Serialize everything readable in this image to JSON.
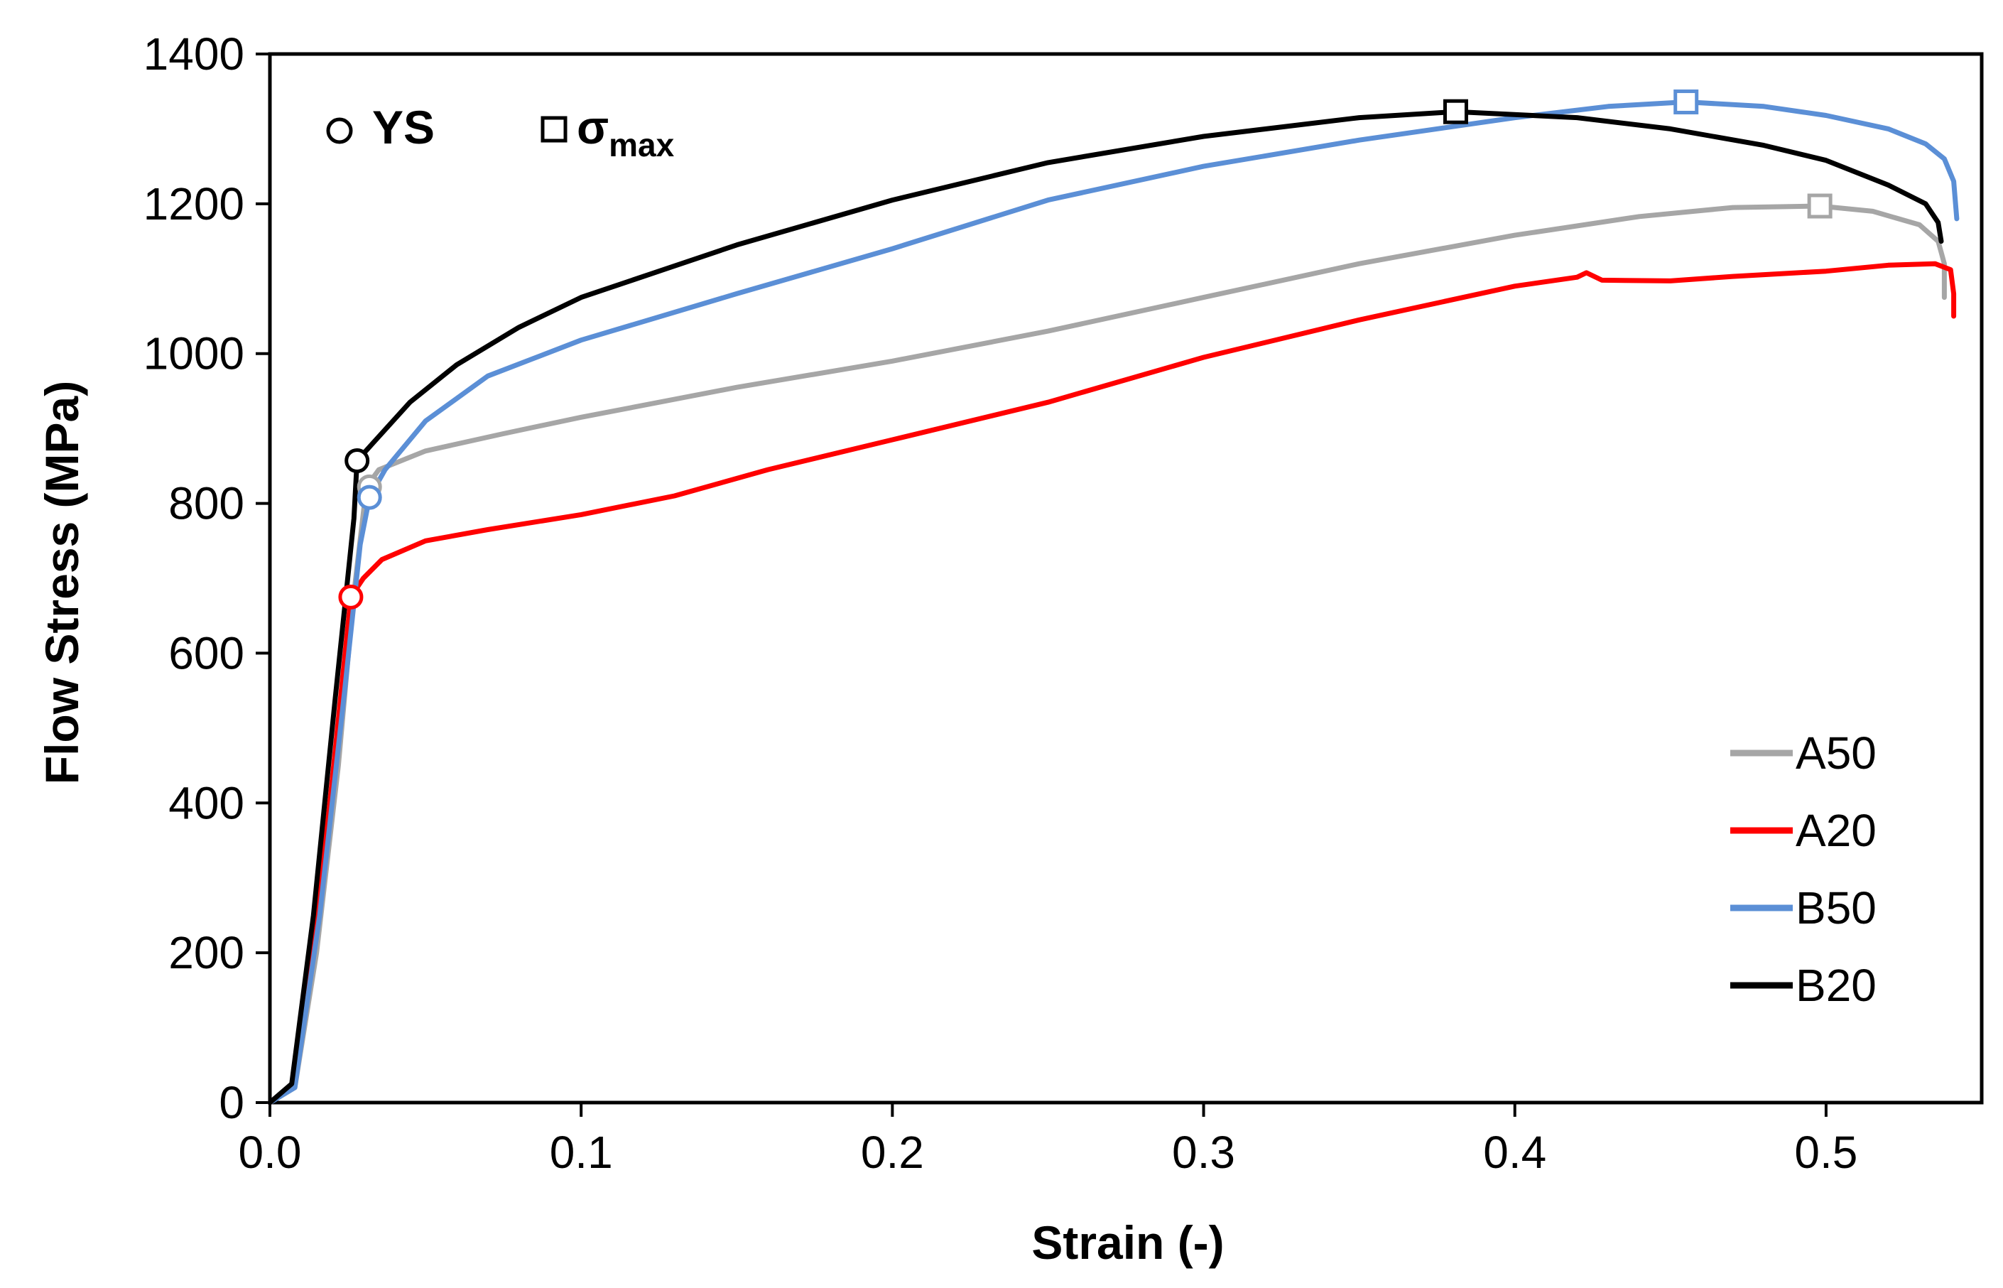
{
  "chart_data": {
    "type": "line",
    "xlabel": "Strain (-)",
    "ylabel": "Flow Stress (MPa)",
    "xlim": [
      0,
      0.55
    ],
    "ylim": [
      0,
      1400
    ],
    "x_ticks": [
      "0.0",
      "0.1",
      "0.2",
      "0.3",
      "0.4",
      "0.5"
    ],
    "x_tick_values": [
      0,
      0.1,
      0.2,
      0.3,
      0.4,
      0.5
    ],
    "y_ticks": [
      "0",
      "200",
      "400",
      "600",
      "800",
      "1000",
      "1200",
      "1400"
    ],
    "y_tick_values": [
      0,
      200,
      400,
      600,
      800,
      1000,
      1200,
      1400
    ],
    "grid": false,
    "legend_position": "bottom-right",
    "marker_legend": {
      "ys_label": "YS",
      "smax_symbol": "σ",
      "smax_subscript": "max"
    },
    "series": [
      {
        "name": "A50",
        "color": "#a6a6a6",
        "points": [
          [
            0,
            0
          ],
          [
            0.008,
            20
          ],
          [
            0.015,
            200
          ],
          [
            0.022,
            450
          ],
          [
            0.027,
            680
          ],
          [
            0.031,
            822
          ],
          [
            0.035,
            845
          ],
          [
            0.05,
            870
          ],
          [
            0.075,
            893
          ],
          [
            0.1,
            915
          ],
          [
            0.15,
            955
          ],
          [
            0.2,
            990
          ],
          [
            0.25,
            1030
          ],
          [
            0.3,
            1075
          ],
          [
            0.35,
            1120
          ],
          [
            0.4,
            1158
          ],
          [
            0.44,
            1183
          ],
          [
            0.47,
            1195
          ],
          [
            0.498,
            1197
          ],
          [
            0.515,
            1190
          ],
          [
            0.53,
            1172
          ],
          [
            0.536,
            1150
          ],
          [
            0.538,
            1120
          ],
          [
            0.538,
            1075
          ]
        ],
        "ys": [
          0.032,
          822
        ],
        "smax": [
          0.498,
          1197
        ]
      },
      {
        "name": "A20",
        "color": "#ff0000",
        "points": [
          [
            0,
            0
          ],
          [
            0.007,
            20
          ],
          [
            0.014,
            200
          ],
          [
            0.02,
            430
          ],
          [
            0.026,
            675
          ],
          [
            0.03,
            700
          ],
          [
            0.036,
            725
          ],
          [
            0.05,
            750
          ],
          [
            0.07,
            765
          ],
          [
            0.1,
            785
          ],
          [
            0.13,
            810
          ],
          [
            0.16,
            845
          ],
          [
            0.2,
            885
          ],
          [
            0.25,
            935
          ],
          [
            0.3,
            995
          ],
          [
            0.35,
            1045
          ],
          [
            0.4,
            1090
          ],
          [
            0.42,
            1102
          ],
          [
            0.423,
            1108
          ],
          [
            0.428,
            1098
          ],
          [
            0.45,
            1097
          ],
          [
            0.47,
            1103
          ],
          [
            0.5,
            1110
          ],
          [
            0.52,
            1118
          ],
          [
            0.535,
            1120
          ],
          [
            0.54,
            1112
          ],
          [
            0.541,
            1080
          ],
          [
            0.541,
            1050
          ]
        ],
        "ys": [
          0.026,
          675
        ],
        "smax": null
      },
      {
        "name": "B50",
        "color": "#5b8fd6",
        "points": [
          [
            0,
            0
          ],
          [
            0.008,
            20
          ],
          [
            0.016,
            250
          ],
          [
            0.024,
            550
          ],
          [
            0.029,
            745
          ],
          [
            0.032,
            808
          ],
          [
            0.037,
            845
          ],
          [
            0.05,
            910
          ],
          [
            0.07,
            970
          ],
          [
            0.1,
            1018
          ],
          [
            0.15,
            1080
          ],
          [
            0.2,
            1140
          ],
          [
            0.25,
            1205
          ],
          [
            0.3,
            1250
          ],
          [
            0.35,
            1285
          ],
          [
            0.4,
            1315
          ],
          [
            0.43,
            1330
          ],
          [
            0.455,
            1336
          ],
          [
            0.48,
            1330
          ],
          [
            0.5,
            1318
          ],
          [
            0.52,
            1300
          ],
          [
            0.532,
            1280
          ],
          [
            0.538,
            1260
          ],
          [
            0.541,
            1230
          ],
          [
            0.542,
            1180
          ]
        ],
        "ys": [
          0.032,
          808
        ],
        "smax": [
          0.455,
          1336
        ]
      },
      {
        "name": "B20",
        "color": "#000000",
        "points": [
          [
            0,
            0
          ],
          [
            0.007,
            25
          ],
          [
            0.014,
            250
          ],
          [
            0.021,
            540
          ],
          [
            0.027,
            780
          ],
          [
            0.028,
            857
          ],
          [
            0.033,
            880
          ],
          [
            0.045,
            935
          ],
          [
            0.06,
            985
          ],
          [
            0.08,
            1035
          ],
          [
            0.1,
            1075
          ],
          [
            0.15,
            1145
          ],
          [
            0.2,
            1205
          ],
          [
            0.25,
            1255
          ],
          [
            0.3,
            1290
          ],
          [
            0.35,
            1315
          ],
          [
            0.381,
            1323
          ],
          [
            0.42,
            1315
          ],
          [
            0.45,
            1300
          ],
          [
            0.48,
            1278
          ],
          [
            0.5,
            1258
          ],
          [
            0.52,
            1225
          ],
          [
            0.532,
            1200
          ],
          [
            0.536,
            1175
          ],
          [
            0.537,
            1150
          ]
        ],
        "ys": [
          0.028,
          857
        ],
        "smax": [
          0.381,
          1323
        ]
      }
    ]
  }
}
